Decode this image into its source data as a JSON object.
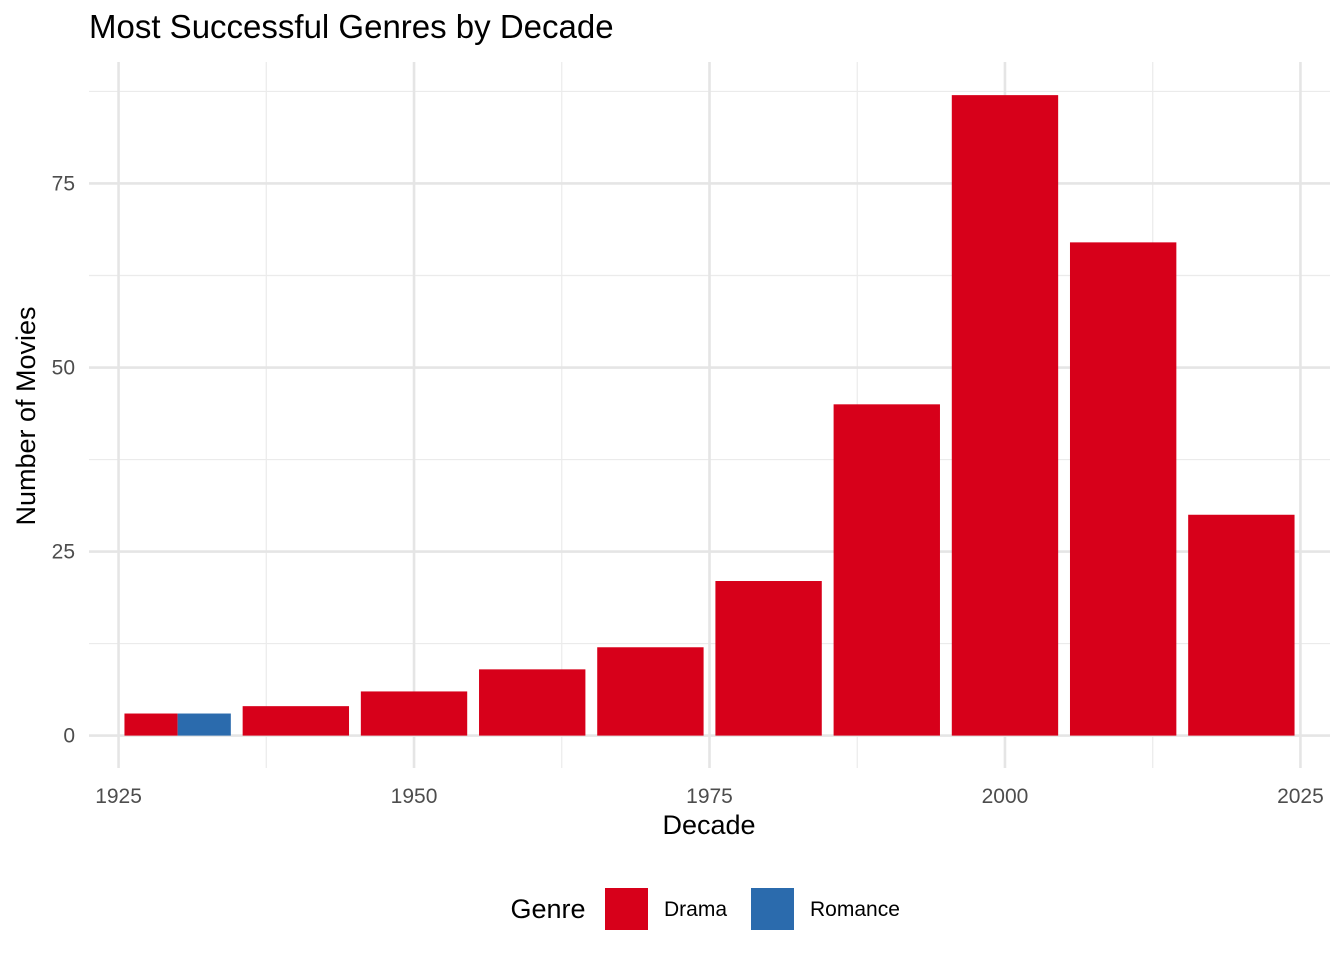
{
  "chart_data": {
    "type": "bar",
    "title": "Most Successful Genres by Decade",
    "xlabel": "Decade",
    "ylabel": "Number of Movies",
    "xlim": [
      1922.5,
      2027.5
    ],
    "ylim": [
      -4.4,
      91.5
    ],
    "x_ticks": [
      1925,
      1950,
      1975,
      2000,
      2025
    ],
    "x_minor_ticks": [
      1937.5,
      1962.5,
      1987.5,
      2012.5
    ],
    "y_ticks": [
      0,
      25,
      50,
      75
    ],
    "y_minor_ticks": [
      12.5,
      37.5,
      62.5,
      87.5
    ],
    "bar_width_years": 9,
    "grid": true,
    "legend": {
      "title": "Genre",
      "position": "bottom"
    },
    "series": [
      {
        "name": "Drama",
        "color": "#D7001A",
        "points": [
          {
            "x": 1930,
            "y": 3,
            "dodge": "left"
          },
          {
            "x": 1940,
            "y": 4
          },
          {
            "x": 1950,
            "y": 6
          },
          {
            "x": 1960,
            "y": 9
          },
          {
            "x": 1970,
            "y": 12
          },
          {
            "x": 1980,
            "y": 21
          },
          {
            "x": 1990,
            "y": 45
          },
          {
            "x": 2000,
            "y": 87
          },
          {
            "x": 2010,
            "y": 67
          },
          {
            "x": 2020,
            "y": 30
          }
        ]
      },
      {
        "name": "Romance",
        "color": "#2B6BAD",
        "points": [
          {
            "x": 1930,
            "y": 3,
            "dodge": "right"
          }
        ]
      }
    ]
  }
}
